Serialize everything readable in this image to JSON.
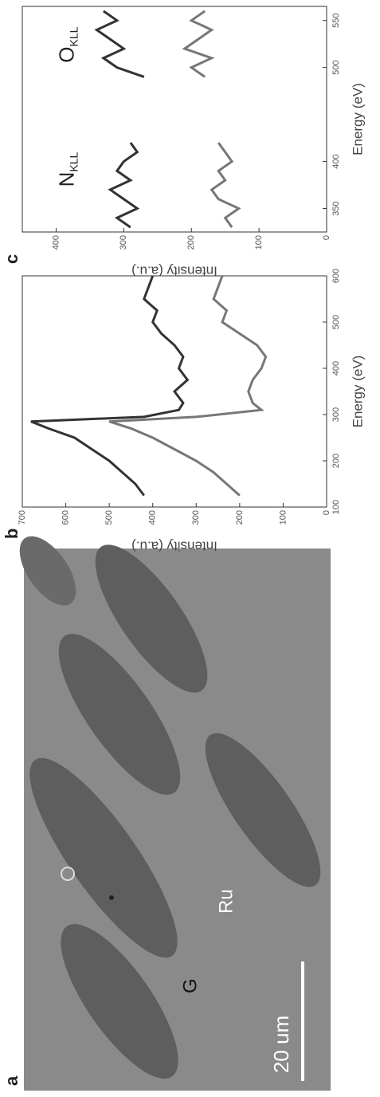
{
  "panel_a": {
    "label": "a",
    "scale_bar": "20 um",
    "labels": [
      "Ru",
      "G"
    ]
  },
  "chart_data": [
    {
      "type": "line",
      "panel_label": "b",
      "xlabel": "Energy (eV)",
      "ylabel": "Intensity (a.u.)",
      "xlim": [
        100,
        600
      ],
      "ylim": [
        0,
        700
      ],
      "xticks": [
        100,
        200,
        300,
        400,
        500,
        600
      ],
      "yticks": [
        0,
        100,
        200,
        300,
        400,
        500,
        600,
        700
      ],
      "x": [
        125,
        150,
        175,
        200,
        225,
        250,
        270,
        285,
        295,
        310,
        325,
        350,
        375,
        400,
        425,
        450,
        475,
        500,
        525,
        550,
        575,
        600
      ],
      "series": [
        {
          "color": "#333333",
          "values": [
            420,
            440,
            470,
            500,
            540,
            580,
            640,
            680,
            420,
            340,
            330,
            350,
            320,
            340,
            330,
            350,
            380,
            400,
            390,
            420,
            410,
            400
          ]
        },
        {
          "color": "#777777",
          "values": [
            200,
            230,
            260,
            300,
            350,
            400,
            450,
            500,
            300,
            150,
            170,
            180,
            170,
            150,
            140,
            160,
            200,
            240,
            230,
            260,
            250,
            240
          ]
        }
      ]
    },
    {
      "type": "line",
      "panel_label": "c",
      "xlabel": "Energy (eV)",
      "ylabel": "Intensity (a.u.)",
      "xlim": [
        325,
        565
      ],
      "ylim": [
        0,
        450
      ],
      "xticks": [
        350,
        400,
        500,
        550
      ],
      "yticks": [
        0,
        100,
        200,
        300,
        400
      ],
      "annotations": [
        {
          "text": "N",
          "sub": "KLL"
        },
        {
          "text": "O",
          "sub": "KLL"
        }
      ],
      "x": [
        330,
        340,
        350,
        360,
        370,
        380,
        390,
        400,
        410,
        420,
        455,
        490,
        500,
        510,
        520,
        530,
        540,
        550,
        560
      ],
      "series": [
        {
          "color": "#333333",
          "values": [
            290,
            310,
            280,
            300,
            320,
            290,
            310,
            300,
            280,
            290,
            null,
            270,
            310,
            330,
            300,
            320,
            340,
            310,
            330
          ]
        },
        {
          "color": "#777777",
          "values": [
            140,
            150,
            130,
            160,
            170,
            150,
            160,
            140,
            150,
            160,
            null,
            180,
            200,
            170,
            210,
            190,
            170,
            200,
            180
          ]
        }
      ]
    }
  ]
}
